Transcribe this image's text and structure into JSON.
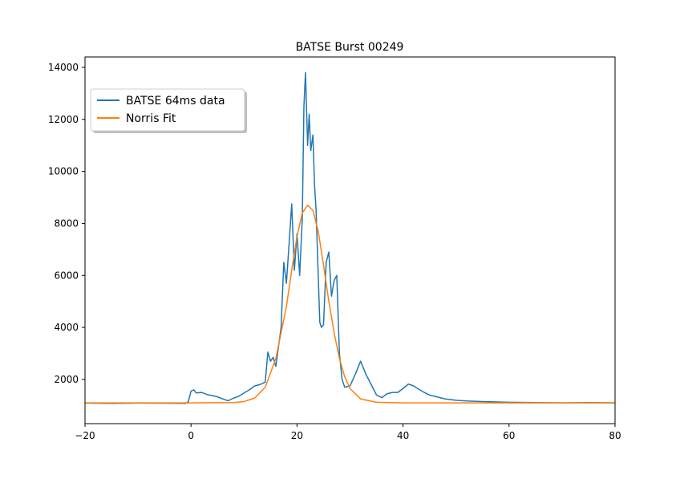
{
  "chart_data": {
    "type": "line",
    "title": "BATSE Burst 00249",
    "xlabel": "",
    "ylabel": "",
    "xlim": [
      -20,
      80
    ],
    "ylim": [
      300,
      14400
    ],
    "x_ticks": [
      -20,
      0,
      20,
      40,
      60,
      80
    ],
    "y_ticks": [
      2000,
      4000,
      6000,
      8000,
      10000,
      12000,
      14000
    ],
    "grid": false,
    "legend_position": "upper-left",
    "series": [
      {
        "name": "BATSE 64ms data",
        "color": "#1f77b4",
        "points": [
          [
            -20,
            1090
          ],
          [
            -15,
            1080
          ],
          [
            -10,
            1090
          ],
          [
            -5,
            1085
          ],
          [
            -1,
            1080
          ],
          [
            -0.5,
            1150
          ],
          [
            0,
            1550
          ],
          [
            0.5,
            1600
          ],
          [
            1,
            1480
          ],
          [
            2,
            1500
          ],
          [
            3,
            1420
          ],
          [
            4,
            1380
          ],
          [
            5,
            1330
          ],
          [
            6,
            1250
          ],
          [
            7,
            1180
          ],
          [
            8,
            1280
          ],
          [
            9,
            1350
          ],
          [
            10,
            1480
          ],
          [
            11,
            1600
          ],
          [
            12,
            1750
          ],
          [
            13,
            1800
          ],
          [
            14,
            1900
          ],
          [
            14.5,
            3050
          ],
          [
            15,
            2700
          ],
          [
            15.5,
            2850
          ],
          [
            16,
            2500
          ],
          [
            17,
            4000
          ],
          [
            17.5,
            6500
          ],
          [
            18,
            5700
          ],
          [
            18.5,
            7200
          ],
          [
            19,
            8750
          ],
          [
            19.5,
            6200
          ],
          [
            20,
            7600
          ],
          [
            20.5,
            6000
          ],
          [
            21,
            8200
          ],
          [
            21.3,
            12500
          ],
          [
            21.6,
            13800
          ],
          [
            22,
            11000
          ],
          [
            22.3,
            12200
          ],
          [
            22.6,
            10800
          ],
          [
            23,
            11400
          ],
          [
            23.3,
            9500
          ],
          [
            23.6,
            8500
          ],
          [
            24,
            6000
          ],
          [
            24.3,
            4200
          ],
          [
            24.6,
            4000
          ],
          [
            25,
            4100
          ],
          [
            25.5,
            6500
          ],
          [
            26,
            6900
          ],
          [
            26.5,
            5200
          ],
          [
            27,
            5800
          ],
          [
            27.5,
            6000
          ],
          [
            28,
            3000
          ],
          [
            28.5,
            2000
          ],
          [
            29,
            1700
          ],
          [
            30,
            1750
          ],
          [
            31,
            2200
          ],
          [
            32,
            2700
          ],
          [
            33,
            2200
          ],
          [
            34,
            1800
          ],
          [
            35,
            1400
          ],
          [
            36,
            1300
          ],
          [
            37,
            1450
          ],
          [
            38,
            1500
          ],
          [
            39,
            1500
          ],
          [
            40,
            1650
          ],
          [
            41,
            1820
          ],
          [
            42,
            1750
          ],
          [
            43,
            1620
          ],
          [
            44,
            1500
          ],
          [
            45,
            1400
          ],
          [
            46,
            1350
          ],
          [
            48,
            1250
          ],
          [
            50,
            1200
          ],
          [
            52,
            1170
          ],
          [
            55,
            1150
          ],
          [
            60,
            1120
          ],
          [
            65,
            1110
          ],
          [
            70,
            1100
          ],
          [
            75,
            1110
          ],
          [
            80,
            1100
          ]
        ]
      },
      {
        "name": "Norris Fit",
        "color": "#ff7f0e",
        "points": [
          [
            -20,
            1100
          ],
          [
            0,
            1100
          ],
          [
            8,
            1110
          ],
          [
            10,
            1150
          ],
          [
            12,
            1280
          ],
          [
            14,
            1700
          ],
          [
            16,
            2800
          ],
          [
            18,
            4800
          ],
          [
            19,
            6200
          ],
          [
            20,
            7500
          ],
          [
            21,
            8400
          ],
          [
            22,
            8700
          ],
          [
            23,
            8500
          ],
          [
            24,
            7700
          ],
          [
            25,
            6400
          ],
          [
            26,
            5000
          ],
          [
            27,
            3800
          ],
          [
            28,
            2800
          ],
          [
            29,
            2100
          ],
          [
            30,
            1650
          ],
          [
            32,
            1250
          ],
          [
            35,
            1120
          ],
          [
            40,
            1100
          ],
          [
            60,
            1100
          ],
          [
            80,
            1100
          ]
        ]
      }
    ]
  }
}
